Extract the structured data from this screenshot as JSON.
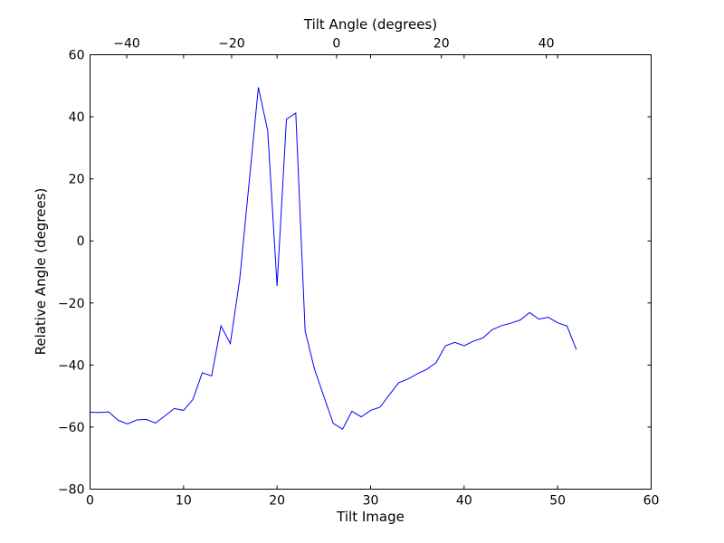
{
  "chart_data": {
    "type": "line",
    "title": "",
    "xlabel": "Tilt Image",
    "ylabel": "Relative Angle (degrees)",
    "x2label": "Tilt Angle (degrees)",
    "xlim": [
      0,
      60
    ],
    "ylim": [
      -80,
      60
    ],
    "x2lim": [
      -47,
      60
    ],
    "xticks": [
      0,
      10,
      20,
      30,
      40,
      50,
      60
    ],
    "yticks": [
      -80,
      -60,
      -40,
      -20,
      0,
      20,
      40,
      60
    ],
    "x2ticks": [
      -40,
      -20,
      0,
      20,
      40
    ],
    "xtick_labels": [
      "0",
      "10",
      "20",
      "30",
      "40",
      "50",
      "60"
    ],
    "ytick_labels": [
      "−80",
      "−60",
      "−40",
      "−20",
      "0",
      "20",
      "40",
      "60"
    ],
    "x2tick_labels": [
      "−40",
      "−20",
      "0",
      "20",
      "40"
    ],
    "grid": false,
    "series": [
      {
        "color": "#0000ff",
        "x": [
          0,
          1,
          2,
          3,
          4,
          5,
          6,
          7,
          8,
          9,
          10,
          11,
          12,
          13,
          14,
          15,
          16,
          17,
          18,
          19,
          20,
          21,
          22,
          23,
          24,
          25,
          26,
          27,
          28,
          29,
          30,
          31,
          32,
          33,
          34,
          35,
          36,
          37,
          38,
          39,
          40,
          41,
          42,
          43,
          44,
          45,
          46,
          47,
          48,
          49,
          50,
          51,
          52
        ],
        "values": [
          -55.2,
          -55.3,
          -55.1,
          -57.8,
          -59,
          -57.7,
          -57.5,
          -58.7,
          -56.4,
          -54,
          -54.6,
          -51.1,
          -42.5,
          -43.5,
          -27.4,
          -33.1,
          -12.5,
          18.5,
          49.5,
          35.5,
          -14.5,
          39.2,
          41.2,
          -29,
          -41.3,
          -50.1,
          -58.8,
          -60.7,
          -54.9,
          -56.7,
          -54.6,
          -53.6,
          -49.6,
          -45.7,
          -44.5,
          -42.8,
          -41.4,
          -39.2,
          -33.8,
          -32.7,
          -33.8,
          -32.3,
          -31.3,
          -28.6,
          -27.3,
          -26.5,
          -25.5,
          -23.1,
          -25.2,
          -24.6,
          -26.4,
          -27.4,
          -35
        ]
      }
    ]
  }
}
